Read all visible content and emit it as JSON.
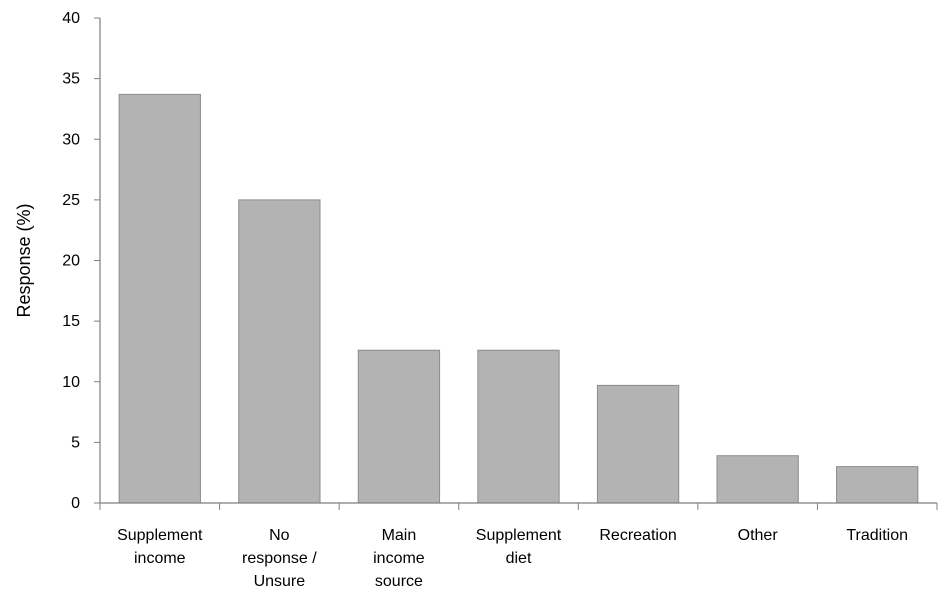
{
  "chart_data": {
    "type": "bar",
    "categories": [
      [
        "Supplement",
        "income"
      ],
      [
        "No",
        "response /",
        "Unsure"
      ],
      [
        "Main",
        "income",
        "source"
      ],
      [
        "Supplement",
        "diet"
      ],
      [
        "Recreation"
      ],
      [
        "Other"
      ],
      [
        "Tradition"
      ]
    ],
    "values": [
      33.7,
      25.0,
      12.6,
      12.6,
      9.7,
      3.9,
      3.0
    ],
    "title": "",
    "xlabel": "",
    "ylabel": "Response (%)",
    "ylim": [
      0,
      40
    ],
    "yticks": [
      0,
      5,
      10,
      15,
      20,
      25,
      30,
      35,
      40
    ],
    "grid": false,
    "legend": "none",
    "colors": {
      "bar_fill": "#b3b3b3",
      "bar_stroke": "#8c8c8c",
      "axis": "#7f7f7f"
    }
  }
}
